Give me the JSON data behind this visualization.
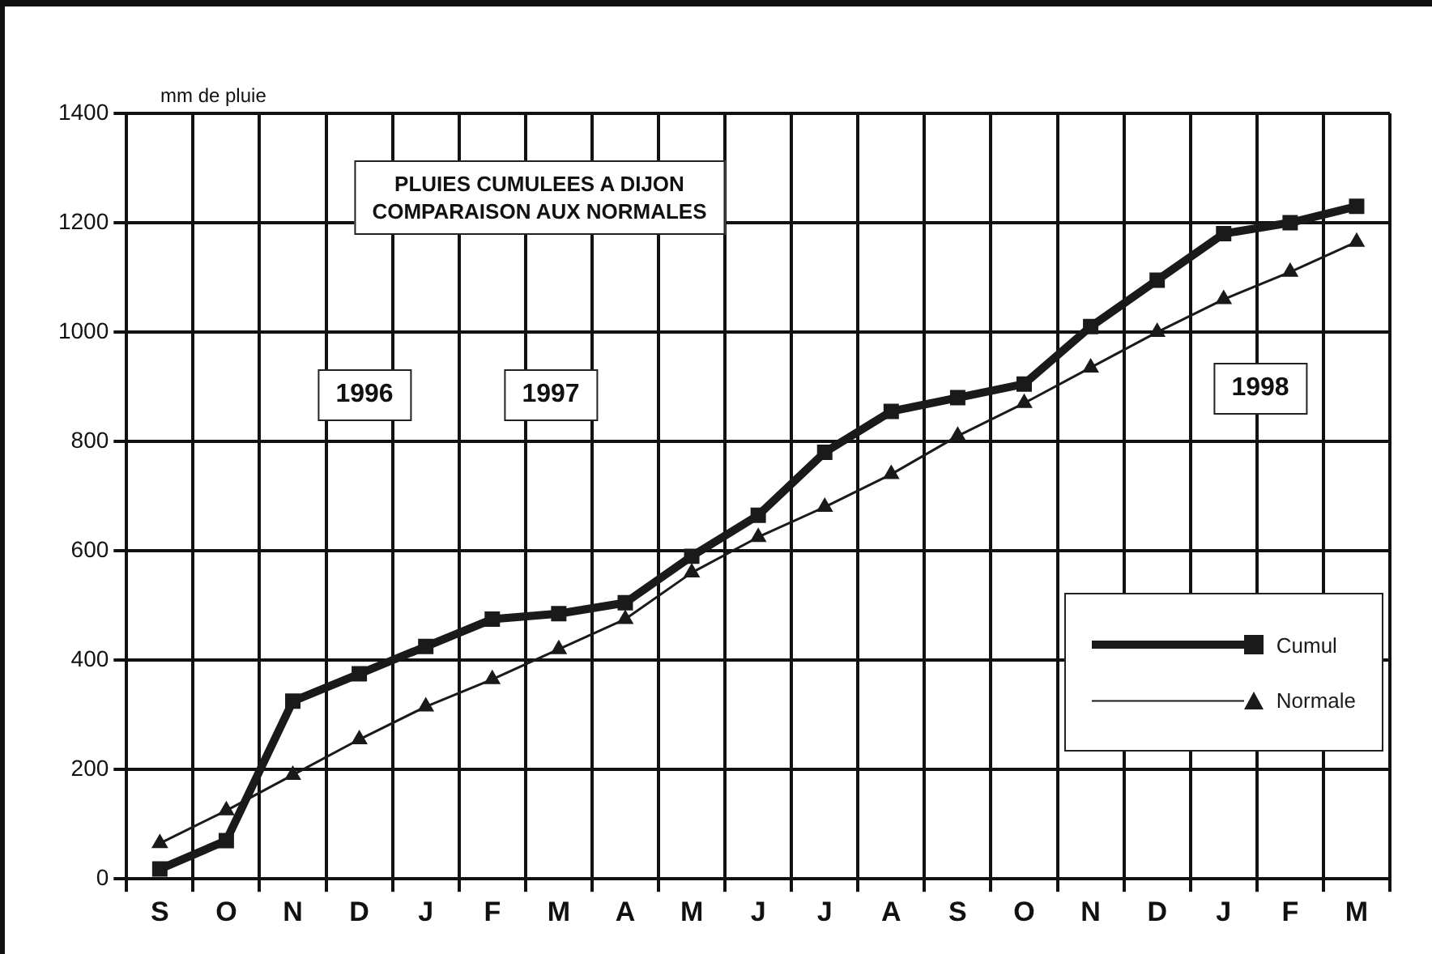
{
  "chart_data": {
    "type": "line",
    "title": "PLUIES CUMULEES A DIJON\nCOMPARAISON AUX NORMALES",
    "ylabel": "mm de pluie",
    "categories": [
      "S",
      "O",
      "N",
      "D",
      "J",
      "F",
      "M",
      "A",
      "M",
      "J",
      "J",
      "A",
      "S",
      "O",
      "N",
      "D",
      "J",
      "F",
      "M"
    ],
    "series": [
      {
        "name": "Cumul",
        "color": "#1a1a1a",
        "marker": "square",
        "values": [
          18,
          70,
          325,
          375,
          425,
          475,
          485,
          505,
          590,
          665,
          780,
          855,
          880,
          905,
          1010,
          1095,
          1180,
          1200,
          1230
        ]
      },
      {
        "name": "Normale",
        "color": "#1a1a1a",
        "marker": "triangle",
        "values": [
          65,
          125,
          190,
          255,
          315,
          365,
          420,
          475,
          560,
          625,
          680,
          740,
          810,
          870,
          935,
          1000,
          1060,
          1110,
          1165
        ]
      }
    ],
    "ylim": [
      0,
      1400
    ],
    "yticks": [
      0,
      200,
      400,
      600,
      800,
      1000,
      1200,
      1400
    ],
    "grid": true,
    "legend": "bottom right",
    "annotations": [
      "1996",
      "1997",
      "1998"
    ]
  }
}
